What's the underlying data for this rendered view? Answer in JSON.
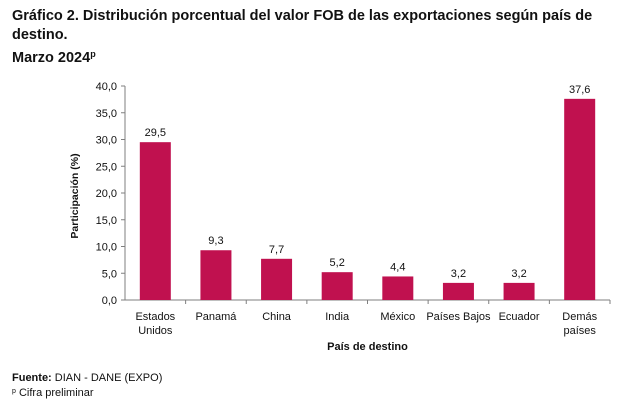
{
  "title": {
    "line1": "Gráfico 2. Distribución porcentual del valor FOB de las exportaciones según país de destino.",
    "line2": "Marzo 2024",
    "superscript": "p"
  },
  "chart_data": {
    "type": "bar",
    "categories": [
      "Estados Unidos",
      "Panamá",
      "China",
      "India",
      "México",
      "Países Bajos",
      "Ecuador",
      "Demás países"
    ],
    "category_label_lines": [
      [
        "Estados",
        "Unidos"
      ],
      [
        "Panamá"
      ],
      [
        "China"
      ],
      [
        "India"
      ],
      [
        "México"
      ],
      [
        "Países Bajos"
      ],
      [
        "Ecuador"
      ],
      [
        "Demás",
        "países"
      ]
    ],
    "values": [
      29.5,
      9.3,
      7.7,
      5.2,
      4.4,
      3.2,
      3.2,
      37.6
    ],
    "value_labels": [
      "29,5",
      "9,3",
      "7,7",
      "5,2",
      "4,4",
      "3,2",
      "3,2",
      "37,6"
    ],
    "xlabel": "País de destino",
    "ylabel": "Participación (%)",
    "ylim": [
      0,
      40
    ],
    "yticks": [
      "0,0",
      "5,0",
      "10,0",
      "15,0",
      "20,0",
      "25,0",
      "30,0",
      "35,0",
      "40,0"
    ],
    "bar_color": "#C0114F",
    "grid": false,
    "legend": false
  },
  "footer": {
    "source_label": "Fuente:",
    "source_text": "DIAN - DANE (EXPO)",
    "note_mark": "p",
    "note_text": "Cifra preliminar"
  }
}
